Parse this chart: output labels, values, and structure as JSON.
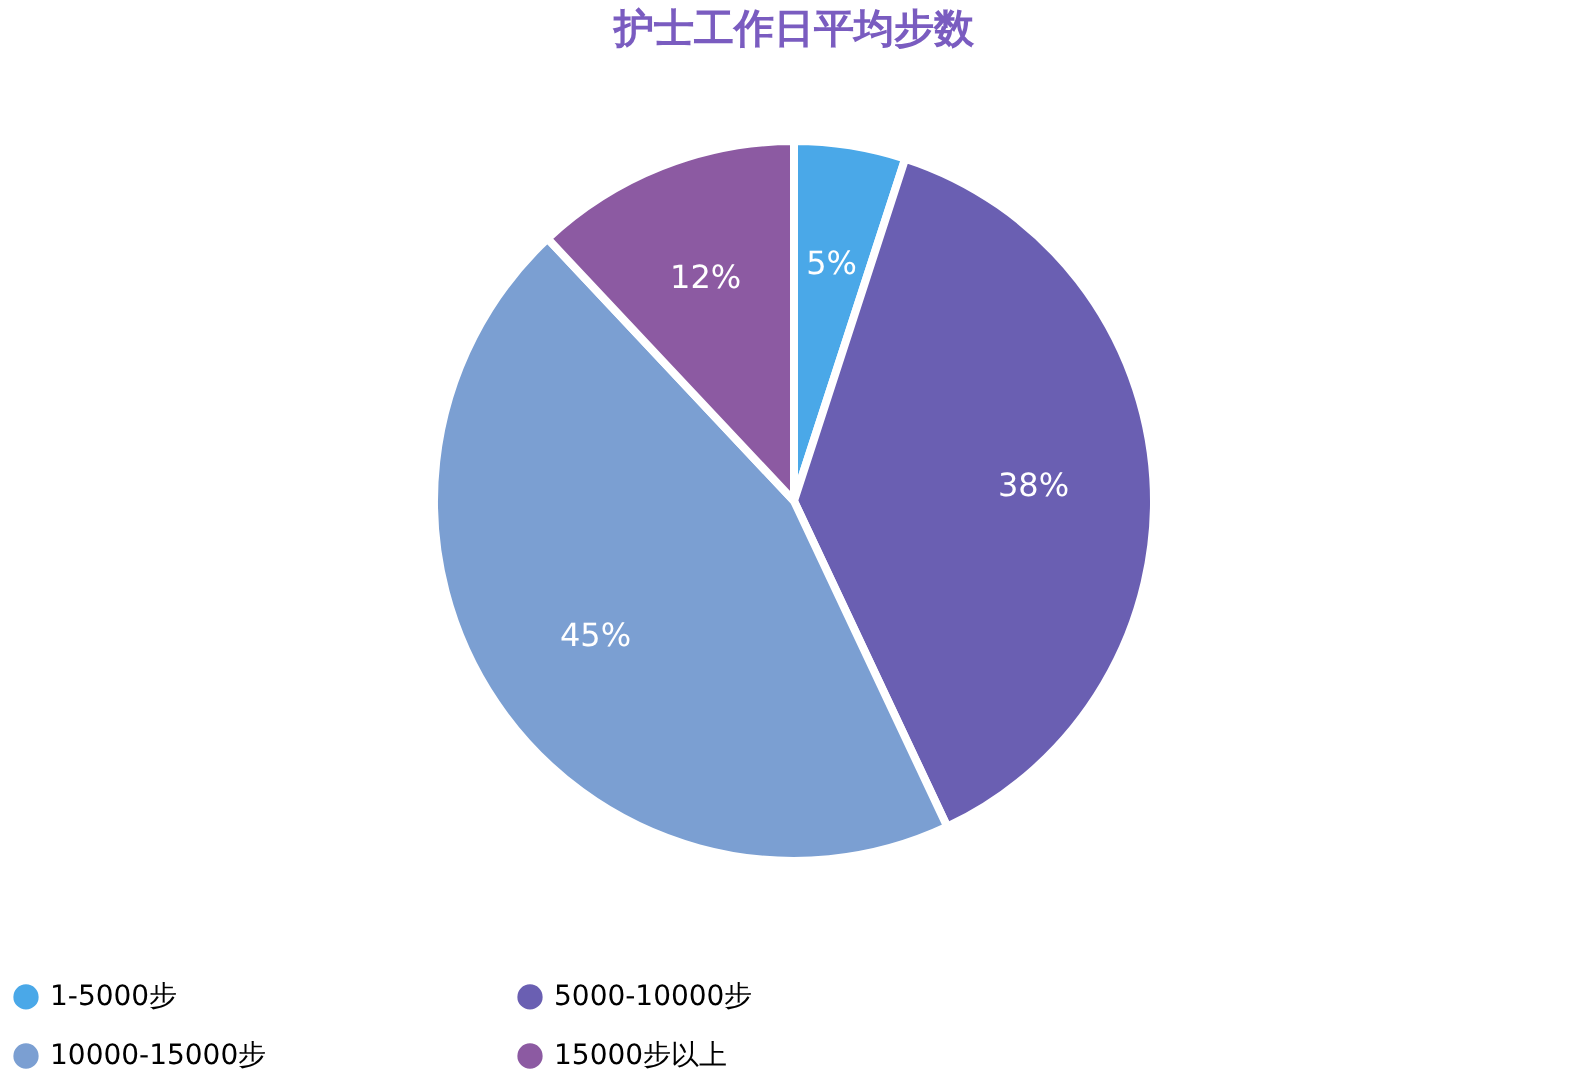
{
  "chart_data": {
    "type": "pie",
    "title": "护士工作日平均步数",
    "categories": [
      "1-5000步",
      "5000-10000步",
      "10000-15000步",
      "15000步以上"
    ],
    "values": [
      5,
      38,
      45,
      12
    ],
    "colors": [
      "#4aa8e8",
      "#6a5fb2",
      "#7b9fd2",
      "#8c5aa2"
    ],
    "value_labels": [
      "5%",
      "38%",
      "45%",
      "12%"
    ],
    "legend": "bottom"
  }
}
